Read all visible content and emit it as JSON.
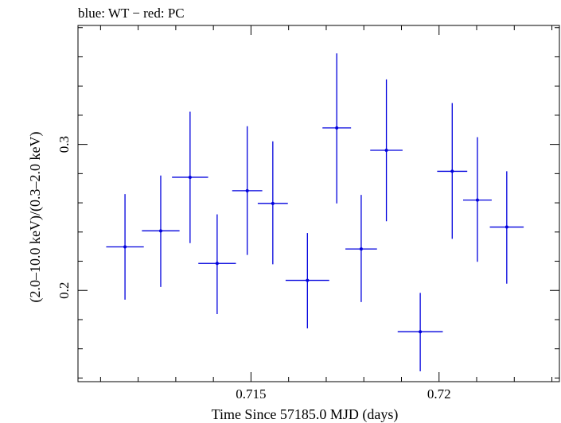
{
  "chart_data": {
    "type": "scatter",
    "title": "blue: WT − red: PC",
    "xlabel": "Time Since 57185.0 MJD (days)",
    "ylabel": "(2.0–10.0 keV)/(0.3–2.0 keV)",
    "xlim": [
      0.7104,
      0.7232
    ],
    "ylim": [
      0.1375,
      0.3815
    ],
    "x_major_ticks": [
      0.715,
      0.72
    ],
    "x_tick_labels": [
      "0.715",
      "0.72"
    ],
    "y_major_ticks": [
      0.2,
      0.3
    ],
    "y_tick_labels": [
      "0.2",
      "0.3"
    ],
    "grid": false,
    "series": [
      {
        "color": "#0000dd",
        "points": [
          {
            "x": 0.71165,
            "y": 0.2298,
            "xerr": 0.0005,
            "ylo": 0.1937,
            "yhi": 0.266
          },
          {
            "x": 0.7126,
            "y": 0.2408,
            "xerr": 0.0005,
            "ylo": 0.2024,
            "yhi": 0.2787
          },
          {
            "x": 0.71338,
            "y": 0.2775,
            "xerr": 0.00048,
            "ylo": 0.2324,
            "yhi": 0.3224
          },
          {
            "x": 0.7141,
            "y": 0.2185,
            "xerr": 0.0005,
            "ylo": 0.1838,
            "yhi": 0.2521
          },
          {
            "x": 0.7149,
            "y": 0.2683,
            "xerr": 0.0004,
            "ylo": 0.2243,
            "yhi": 0.3125
          },
          {
            "x": 0.71558,
            "y": 0.2596,
            "xerr": 0.0004,
            "ylo": 0.2179,
            "yhi": 0.3021
          },
          {
            "x": 0.7165,
            "y": 0.2069,
            "xerr": 0.00058,
            "ylo": 0.174,
            "yhi": 0.2393
          },
          {
            "x": 0.71728,
            "y": 0.3113,
            "xerr": 0.00038,
            "ylo": 0.2596,
            "yhi": 0.3624
          },
          {
            "x": 0.71793,
            "y": 0.2284,
            "xerr": 0.00042,
            "ylo": 0.192,
            "yhi": 0.2654
          },
          {
            "x": 0.7186,
            "y": 0.296,
            "xerr": 0.00043,
            "ylo": 0.2474,
            "yhi": 0.3445
          },
          {
            "x": 0.7195,
            "y": 0.1717,
            "xerr": 0.0006,
            "ylo": 0.1446,
            "yhi": 0.1983
          },
          {
            "x": 0.72035,
            "y": 0.2816,
            "xerr": 0.0004,
            "ylo": 0.2353,
            "yhi": 0.3283
          },
          {
            "x": 0.72102,
            "y": 0.2619,
            "xerr": 0.00038,
            "ylo": 0.2196,
            "yhi": 0.305
          },
          {
            "x": 0.7218,
            "y": 0.2434,
            "xerr": 0.00045,
            "ylo": 0.2046,
            "yhi": 0.2816
          }
        ]
      }
    ]
  }
}
